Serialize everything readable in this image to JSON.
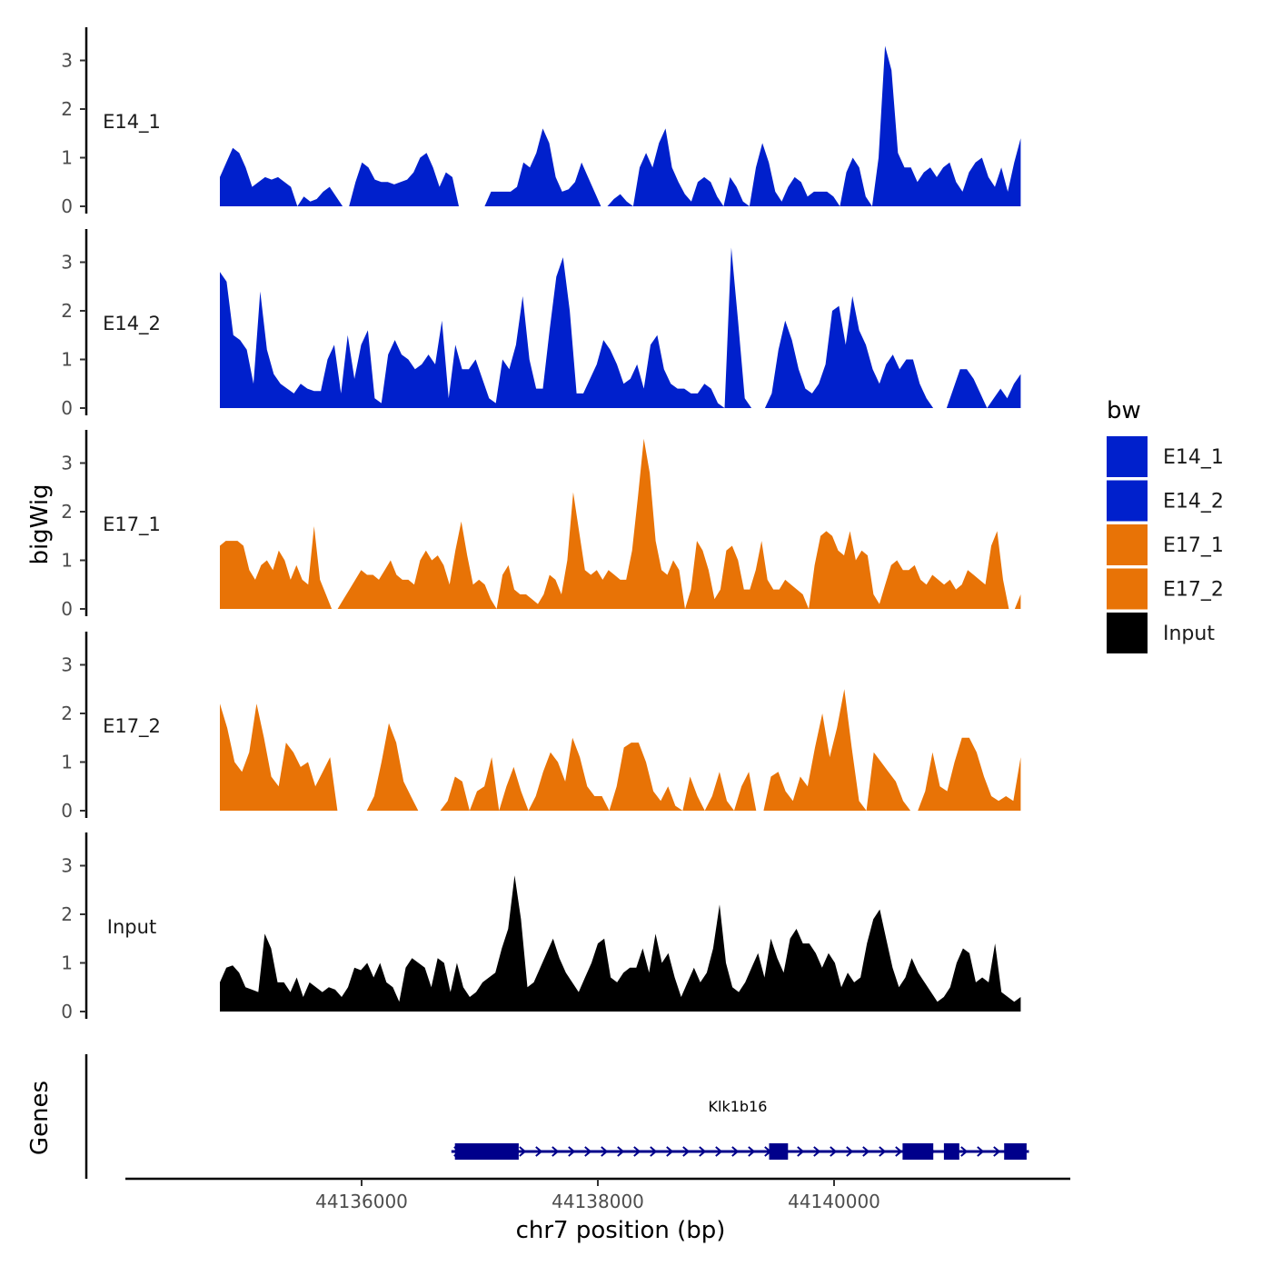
{
  "chart_data": {
    "type": "area",
    "chart_kind": "genome-browser coverage tracks",
    "ylabel": "bigWig",
    "xlabel": "chr7 position (bp)",
    "genes_label": "Genes",
    "ylim": [
      0,
      3.5
    ],
    "y_ticks": [
      "0",
      "1",
      "2",
      "3"
    ],
    "xlim": [
      44134000,
      44142000
    ],
    "data_x_range": [
      44134800,
      44141580
    ],
    "x_ticks": [
      44136000,
      44138000,
      44140000
    ],
    "x_tick_labels": [
      "44136000",
      "44138000",
      "44140000"
    ],
    "legend": {
      "title": "bw",
      "position": "right",
      "entries": [
        {
          "label": "E14_1",
          "color": "#0020cc"
        },
        {
          "label": "E14_2",
          "color": "#0020cc"
        },
        {
          "label": "E17_1",
          "color": "#e87306"
        },
        {
          "label": "E17_2",
          "color": "#e87306"
        },
        {
          "label": "Input",
          "color": "#000000"
        }
      ]
    },
    "tracks": [
      {
        "name": "E14_1",
        "color": "#0020cc",
        "values": [
          0.6,
          0.9,
          1.2,
          1.1,
          0.8,
          0.4,
          0.5,
          0.6,
          0.55,
          0.6,
          0.5,
          0.4,
          0.0,
          0.2,
          0.1,
          0.15,
          0.3,
          0.4,
          0.2,
          0.0,
          0.0,
          0.5,
          0.9,
          0.8,
          0.55,
          0.5,
          0.5,
          0.45,
          0.5,
          0.55,
          0.7,
          1.0,
          1.1,
          0.8,
          0.4,
          0.7,
          0.6,
          0.0,
          0.0,
          0.0,
          0.0,
          0.0,
          0.3,
          0.3,
          0.3,
          0.3,
          0.4,
          0.9,
          0.8,
          1.1,
          1.6,
          1.3,
          0.6,
          0.3,
          0.35,
          0.5,
          0.9,
          0.6,
          0.3,
          0.0,
          0.0,
          0.15,
          0.25,
          0.1,
          0.0,
          0.8,
          1.1,
          0.8,
          1.3,
          1.6,
          0.8,
          0.5,
          0.25,
          0.1,
          0.5,
          0.6,
          0.5,
          0.2,
          0.0,
          0.6,
          0.4,
          0.1,
          0.0,
          0.8,
          1.3,
          0.9,
          0.3,
          0.1,
          0.4,
          0.6,
          0.5,
          0.2,
          0.3,
          0.3,
          0.3,
          0.2,
          0.0,
          0.7,
          1.0,
          0.8,
          0.2,
          0.0,
          1.0,
          3.3,
          2.8,
          1.1,
          0.8,
          0.8,
          0.5,
          0.7,
          0.8,
          0.6,
          0.8,
          0.9,
          0.5,
          0.3,
          0.7,
          0.9,
          1.0,
          0.6,
          0.4,
          0.8,
          0.3,
          0.9,
          1.4
        ]
      },
      {
        "name": "E14_2",
        "color": "#0020cc",
        "values": [
          2.8,
          2.6,
          1.5,
          1.4,
          1.2,
          0.5,
          2.4,
          1.2,
          0.7,
          0.5,
          0.4,
          0.3,
          0.5,
          0.4,
          0.35,
          0.35,
          1.0,
          1.3,
          0.3,
          1.5,
          0.6,
          1.3,
          1.6,
          0.2,
          0.1,
          1.1,
          1.4,
          1.1,
          1.0,
          0.8,
          0.9,
          1.1,
          0.9,
          1.8,
          0.2,
          1.3,
          0.8,
          0.8,
          1.0,
          0.6,
          0.2,
          0.1,
          1.0,
          0.8,
          1.3,
          2.3,
          1.0,
          0.4,
          0.4,
          1.6,
          2.7,
          3.1,
          2.0,
          0.3,
          0.3,
          0.6,
          0.9,
          1.4,
          1.2,
          0.9,
          0.5,
          0.6,
          0.9,
          0.4,
          1.3,
          1.5,
          0.8,
          0.5,
          0.4,
          0.4,
          0.3,
          0.3,
          0.5,
          0.4,
          0.1,
          0.0,
          3.3,
          1.8,
          0.2,
          0.0,
          0.0,
          0.0,
          0.3,
          1.2,
          1.8,
          1.4,
          0.8,
          0.4,
          0.3,
          0.5,
          0.9,
          2.0,
          2.1,
          1.3,
          2.3,
          1.6,
          1.3,
          0.8,
          0.5,
          0.9,
          1.1,
          0.8,
          1.0,
          1.0,
          0.5,
          0.2,
          0.0,
          0.0,
          0.0,
          0.4,
          0.8,
          0.8,
          0.6,
          0.3,
          0.0,
          0.2,
          0.4,
          0.2,
          0.5,
          0.7
        ]
      },
      {
        "name": "E17_1",
        "color": "#e87306",
        "values": [
          1.3,
          1.4,
          1.4,
          1.4,
          1.3,
          0.8,
          0.6,
          0.9,
          1.0,
          0.8,
          1.2,
          1.0,
          0.6,
          0.9,
          0.6,
          0.5,
          1.7,
          0.6,
          0.3,
          0.0,
          0.0,
          0.2,
          0.4,
          0.6,
          0.8,
          0.7,
          0.7,
          0.6,
          0.8,
          1.0,
          0.7,
          0.6,
          0.6,
          0.5,
          1.0,
          1.2,
          1.0,
          1.1,
          0.9,
          0.5,
          1.2,
          1.8,
          1.1,
          0.5,
          0.6,
          0.5,
          0.2,
          0.0,
          0.7,
          0.9,
          0.4,
          0.3,
          0.3,
          0.2,
          0.1,
          0.3,
          0.7,
          0.6,
          0.3,
          1.0,
          2.4,
          1.6,
          0.8,
          0.7,
          0.8,
          0.6,
          0.8,
          0.7,
          0.6,
          0.6,
          1.2,
          2.3,
          3.5,
          2.8,
          1.4,
          0.8,
          0.7,
          1.0,
          0.8,
          0.0,
          0.4,
          1.4,
          1.2,
          0.8,
          0.2,
          0.4,
          1.2,
          1.3,
          1.0,
          0.4,
          0.4,
          0.8,
          1.4,
          0.6,
          0.4,
          0.4,
          0.6,
          0.5,
          0.4,
          0.3,
          0.0,
          0.9,
          1.5,
          1.6,
          1.5,
          1.2,
          1.1,
          1.6,
          1.0,
          1.2,
          1.1,
          0.3,
          0.1,
          0.5,
          0.9,
          1.0,
          0.8,
          0.8,
          0.9,
          0.6,
          0.5,
          0.7,
          0.6,
          0.5,
          0.6,
          0.4,
          0.5,
          0.8,
          0.7,
          0.6,
          0.5,
          1.3,
          1.6,
          0.6,
          0.0,
          0.0,
          0.3
        ]
      },
      {
        "name": "E17_2",
        "color": "#e87306",
        "values": [
          2.2,
          1.7,
          1.0,
          0.8,
          1.2,
          2.2,
          1.5,
          0.7,
          0.5,
          1.4,
          1.2,
          0.9,
          1.0,
          0.5,
          0.8,
          1.1,
          0.0,
          0.0,
          0.0,
          0.0,
          0.0,
          0.3,
          1.0,
          1.8,
          1.4,
          0.6,
          0.3,
          0.0,
          0.0,
          0.0,
          0.0,
          0.2,
          0.7,
          0.6,
          0.0,
          0.4,
          0.5,
          1.1,
          0.0,
          0.5,
          0.9,
          0.4,
          0.0,
          0.3,
          0.8,
          1.2,
          1.0,
          0.6,
          1.5,
          1.1,
          0.5,
          0.3,
          0.3,
          0.0,
          0.5,
          1.3,
          1.4,
          1.4,
          1.0,
          0.4,
          0.2,
          0.5,
          0.1,
          0.0,
          0.7,
          0.3,
          0.0,
          0.3,
          0.8,
          0.2,
          0.0,
          0.5,
          0.8,
          0.0,
          0.0,
          0.7,
          0.8,
          0.4,
          0.2,
          0.7,
          0.5,
          1.3,
          2.0,
          1.1,
          1.7,
          2.5,
          1.3,
          0.2,
          0.0,
          1.2,
          1.0,
          0.8,
          0.6,
          0.2,
          0.0,
          0.0,
          0.4,
          1.2,
          0.5,
          0.4,
          1.0,
          1.5,
          1.5,
          1.2,
          0.7,
          0.3,
          0.2,
          0.3,
          0.2,
          1.1
        ]
      },
      {
        "name": "Input",
        "color": "#000000",
        "values": [
          0.6,
          0.9,
          0.95,
          0.8,
          0.5,
          0.45,
          0.4,
          1.6,
          1.3,
          0.6,
          0.6,
          0.4,
          0.7,
          0.3,
          0.6,
          0.5,
          0.4,
          0.5,
          0.45,
          0.3,
          0.5,
          0.9,
          0.85,
          1.0,
          0.7,
          1.0,
          0.6,
          0.5,
          0.2,
          0.9,
          1.1,
          1.0,
          0.9,
          0.5,
          1.1,
          1.0,
          0.4,
          1.0,
          0.5,
          0.3,
          0.4,
          0.6,
          0.7,
          0.8,
          1.3,
          1.7,
          2.8,
          1.9,
          0.5,
          0.6,
          0.9,
          1.2,
          1.5,
          1.1,
          0.8,
          0.6,
          0.4,
          0.7,
          1.0,
          1.4,
          1.5,
          0.7,
          0.6,
          0.8,
          0.9,
          0.9,
          1.3,
          0.8,
          1.6,
          1.0,
          1.2,
          0.7,
          0.3,
          0.6,
          0.9,
          0.6,
          0.8,
          1.3,
          2.2,
          1.0,
          0.5,
          0.4,
          0.6,
          0.9,
          1.2,
          0.7,
          1.5,
          1.1,
          0.8,
          1.5,
          1.7,
          1.4,
          1.4,
          1.2,
          0.9,
          1.2,
          1.0,
          0.5,
          0.8,
          0.6,
          0.7,
          1.4,
          1.9,
          2.1,
          1.5,
          0.9,
          0.5,
          0.7,
          1.1,
          0.8,
          0.6,
          0.4,
          0.2,
          0.3,
          0.5,
          1.0,
          1.3,
          1.2,
          0.6,
          0.7,
          0.6,
          1.4,
          0.4,
          0.3,
          0.2,
          0.3
        ]
      }
    ],
    "genes": [
      {
        "name": "Klk1b16",
        "start": 44136760,
        "end": 44141650,
        "color": "#00008b",
        "exons": [
          [
            44136790,
            44137330
          ],
          [
            44139450,
            44139610
          ],
          [
            44140580,
            44140840
          ],
          [
            44140930,
            44141060
          ],
          [
            44141440,
            44141630
          ]
        ]
      }
    ]
  }
}
